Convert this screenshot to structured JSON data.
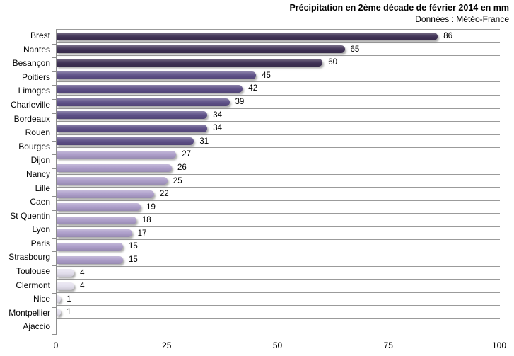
{
  "header": {
    "title": "Précipitation en 2ème décade de février 2014 en mm",
    "subtitle": "Données : Météo-France"
  },
  "chart_data": {
    "type": "bar",
    "orientation": "horizontal",
    "title": "Précipitation en 2ème décade de février 2014 en mm",
    "subtitle": "Données : Météo-France",
    "xlabel": "",
    "ylabel": "",
    "xlim": [
      0,
      100
    ],
    "xticks": [
      0,
      25,
      50,
      75,
      100
    ],
    "grid": "horizontal-category-lines",
    "legend": "none",
    "value_labels": "outside-end",
    "palette": {
      "dark": "#3f3155",
      "medium": "#5d4f87",
      "light": "#ac9dc9",
      "pale": "#e4e0ee",
      "gridline": "#9b9b9b",
      "text": "#000000"
    },
    "bars": [
      {
        "label": "Brest",
        "value": 86,
        "tone": "dark"
      },
      {
        "label": "Nantes",
        "value": 65,
        "tone": "dark"
      },
      {
        "label": "Besançon",
        "value": 60,
        "tone": "dark"
      },
      {
        "label": "Poitiers",
        "value": 45,
        "tone": "medium"
      },
      {
        "label": "Limoges",
        "value": 42,
        "tone": "medium"
      },
      {
        "label": "Charleville",
        "value": 39,
        "tone": "medium"
      },
      {
        "label": "Bordeaux",
        "value": 34,
        "tone": "medium"
      },
      {
        "label": "Rouen",
        "value": 34,
        "tone": "medium"
      },
      {
        "label": "Bourges",
        "value": 31,
        "tone": "medium"
      },
      {
        "label": "Dijon",
        "value": 27,
        "tone": "light"
      },
      {
        "label": "Nancy",
        "value": 26,
        "tone": "light"
      },
      {
        "label": "Lille",
        "value": 25,
        "tone": "light"
      },
      {
        "label": "Caen",
        "value": 22,
        "tone": "light"
      },
      {
        "label": "St Quentin",
        "value": 19,
        "tone": "light"
      },
      {
        "label": "Lyon",
        "value": 18,
        "tone": "light"
      },
      {
        "label": "Paris",
        "value": 17,
        "tone": "light"
      },
      {
        "label": "Strasbourg",
        "value": 15,
        "tone": "light"
      },
      {
        "label": "Toulouse",
        "value": 15,
        "tone": "light"
      },
      {
        "label": "Clermont",
        "value": 4,
        "tone": "pale"
      },
      {
        "label": "Nice",
        "value": 4,
        "tone": "pale"
      },
      {
        "label": "Montpellier",
        "value": 1,
        "tone": "pale"
      },
      {
        "label": "Ajaccio",
        "value": 1,
        "tone": "pale"
      }
    ]
  }
}
